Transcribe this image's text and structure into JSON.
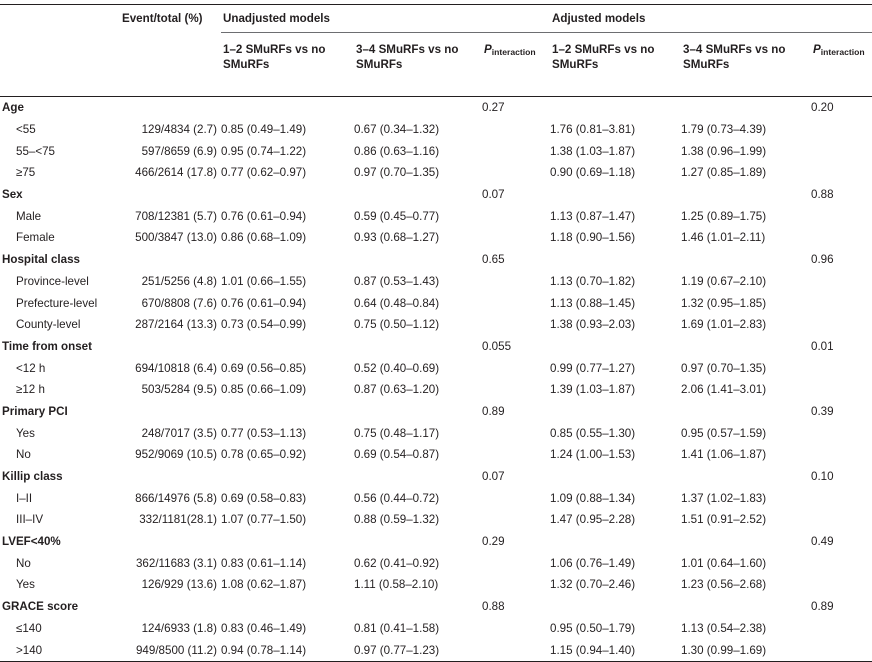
{
  "header": {
    "event_total": "Event/total (%)",
    "unadjusted": "Unadjusted models",
    "adjusted": "Adjusted models",
    "col_12_line1": "1–2 SMuRFs vs no",
    "col_12_line2": "SMuRFs",
    "col_34_line1": "3–4 SMuRFs vs no",
    "col_34_line2": "SMuRFs",
    "p_main": "P",
    "p_sub": "interaction"
  },
  "groups": [
    {
      "label": "Age",
      "p_unadj": "0.27",
      "p_adj": "0.20",
      "rows": [
        {
          "label": "<55",
          "event": "129/4834 (2.7)",
          "u12": "0.85 (0.49–1.49)",
          "u34": "0.67 (0.34–1.32)",
          "a12": "1.76 (0.81–3.81)",
          "a34": "1.79 (0.73–4.39)"
        },
        {
          "label": "55–<75",
          "event": "597/8659 (6.9)",
          "u12": "0.95 (0.74–1.22)",
          "u34": "0.86 (0.63–1.16)",
          "a12": "1.38 (1.03–1.87)",
          "a34": "1.38 (0.96–1.99)"
        },
        {
          "label": "≥75",
          "event": "466/2614 (17.8)",
          "u12": "0.77 (0.62–0.97)",
          "u34": "0.97 (0.70–1.35)",
          "a12": "0.90 (0.69–1.18)",
          "a34": "1.27 (0.85–1.89)"
        }
      ]
    },
    {
      "label": "Sex",
      "p_unadj": "0.07",
      "p_adj": "0.88",
      "rows": [
        {
          "label": "Male",
          "event": "708/12381 (5.7)",
          "u12": "0.76 (0.61–0.94)",
          "u34": "0.59 (0.45–0.77)",
          "a12": "1.13 (0.87–1.47)",
          "a34": "1.25 (0.89–1.75)"
        },
        {
          "label": "Female",
          "event": "500/3847 (13.0)",
          "u12": "0.86 (0.68–1.09)",
          "u34": "0.93 (0.68–1.27)",
          "a12": "1.18 (0.90–1.56)",
          "a34": "1.46 (1.01–2.11)"
        }
      ]
    },
    {
      "label": "Hospital class",
      "p_unadj": "0.65",
      "p_adj": "0.96",
      "rows": [
        {
          "label": "Province-level",
          "event": "251/5256 (4.8)",
          "u12": "1.01 (0.66–1.55)",
          "u34": "0.87 (0.53–1.43)",
          "a12": "1.13 (0.70–1.82)",
          "a34": "1.19 (0.67–2.10)"
        },
        {
          "label": "Prefecture-level",
          "event": "670/8808 (7.6)",
          "u12": "0.76 (0.61–0.94)",
          "u34": "0.64 (0.48–0.84)",
          "a12": "1.13 (0.88–1.45)",
          "a34": "1.32 (0.95–1.85)"
        },
        {
          "label": "County-level",
          "event": "287/2164 (13.3)",
          "u12": "0.73 (0.54–0.99)",
          "u34": "0.75 (0.50–1.12)",
          "a12": "1.38 (0.93–2.03)",
          "a34": "1.69 (1.01–2.83)"
        }
      ]
    },
    {
      "label": "Time from onset",
      "p_unadj": "0.055",
      "p_adj": "0.01",
      "rows": [
        {
          "label": "<12 h",
          "event": "694/10818 (6.4)",
          "u12": "0.69 (0.56–0.85)",
          "u34": "0.52 (0.40–0.69)",
          "a12": "0.99 (0.77–1.27)",
          "a34": "0.97 (0.70–1.35)"
        },
        {
          "label": "≥12 h",
          "event": "503/5284 (9.5)",
          "u12": "0.85 (0.66–1.09)",
          "u34": "0.87 (0.63–1.20)",
          "a12": "1.39 (1.03–1.87)",
          "a34": "2.06 (1.41–3.01)"
        }
      ]
    },
    {
      "label": "Primary PCI",
      "p_unadj": "0.89",
      "p_adj": "0.39",
      "rows": [
        {
          "label": "Yes",
          "event": "248/7017 (3.5)",
          "u12": "0.77 (0.53–1.13)",
          "u34": "0.75 (0.48–1.17)",
          "a12": "0.85 (0.55–1.30)",
          "a34": "0.95 (0.57–1.59)"
        },
        {
          "label": "No",
          "event": "952/9069 (10.5)",
          "u12": "0.78 (0.65–0.92)",
          "u34": "0.69 (0.54–0.87)",
          "a12": "1.24 (1.00–1.53)",
          "a34": "1.41 (1.06–1.87)"
        }
      ]
    },
    {
      "label": "Killip class",
      "p_unadj": "0.07",
      "p_adj": "0.10",
      "rows": [
        {
          "label": "I–II",
          "event": "866/14976 (5.8)",
          "u12": "0.69 (0.58–0.83)",
          "u34": "0.56 (0.44–0.72)",
          "a12": "1.09 (0.88–1.34)",
          "a34": "1.37 (1.02–1.83)"
        },
        {
          "label": "III–IV",
          "event": "332/1181(28.1)",
          "u12": "1.07 (0.77–1.50)",
          "u34": "0.88 (0.59–1.32)",
          "a12": "1.47 (0.95–2.28)",
          "a34": "1.51 (0.91–2.52)"
        }
      ]
    },
    {
      "label": "LVEF<40%",
      "p_unadj": "0.29",
      "p_adj": "0.49",
      "rows": [
        {
          "label": "No",
          "event": "362/11683 (3.1)",
          "u12": "0.83 (0.61–1.14)",
          "u34": "0.62 (0.41–0.92)",
          "a12": "1.06 (0.76–1.49)",
          "a34": "1.01 (0.64–1.60)"
        },
        {
          "label": "Yes",
          "event": "126/929 (13.6)",
          "u12": "1.08 (0.62–1.87)",
          "u34": "1.11 (0.58–2.10)",
          "a12": "1.32 (0.70–2.46)",
          "a34": "1.23 (0.56–2.68)"
        }
      ]
    },
    {
      "label": "GRACE score",
      "p_unadj": "0.88",
      "p_adj": "0.89",
      "rows": [
        {
          "label": "≤140",
          "event": "124/6933 (1.8)",
          "u12": "0.83 (0.46–1.49)",
          "u34": "0.81 (0.41–1.58)",
          "a12": "0.95 (0.50–1.79)",
          "a34": "1.13 (0.54–2.38)"
        },
        {
          "label": ">140",
          "event": "949/8500 (11.2)",
          "u12": "0.94 (0.78–1.14)",
          "u34": "0.97 (0.77–1.23)",
          "a12": "1.15 (0.94–1.40)",
          "a34": "1.30 (0.99–1.69)"
        }
      ]
    }
  ]
}
